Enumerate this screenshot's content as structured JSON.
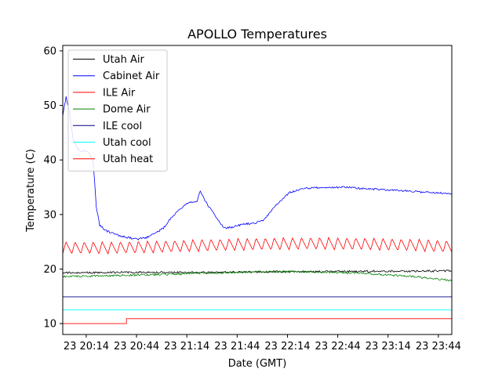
{
  "chart_data": {
    "type": "line",
    "title": "APOLLO Temperatures",
    "xlabel": "Date (GMT)",
    "ylabel": "Temperature (C)",
    "xlim": [
      "23 20:00",
      "23 23:52"
    ],
    "ylim": [
      8,
      61
    ],
    "grid": false,
    "legend_placement": "top-left",
    "x_ticks": [
      "23 20:14",
      "23 20:44",
      "23 21:14",
      "23 21:44",
      "23 22:14",
      "23 22:44",
      "23 23:14",
      "23 23:44"
    ],
    "y_ticks": [
      10,
      20,
      30,
      40,
      50,
      60
    ],
    "series": [
      {
        "name": "Utah Air",
        "color": "#000000",
        "x": [
          "23 20:00",
          "23 20:30",
          "23 21:00",
          "23 21:30",
          "23 22:00",
          "23 22:30",
          "23 23:00",
          "23 23:30",
          "23 23:52"
        ],
        "values": [
          19.3,
          19.4,
          19.4,
          19.4,
          19.5,
          19.5,
          19.6,
          19.6,
          19.7
        ]
      },
      {
        "name": "Cabinet Air",
        "color": "#0000ff",
        "x": [
          "23 20:00",
          "23 20:01",
          "23 20:02",
          "23 20:04",
          "23 20:06",
          "23 20:09",
          "23 20:11",
          "23 20:13",
          "23 20:15",
          "23 20:18",
          "23 20:19",
          "23 20:20",
          "23 20:22",
          "23 20:26",
          "23 20:30",
          "23 20:35",
          "23 20:40",
          "23 20:45",
          "23 20:50",
          "23 20:55",
          "23 21:00",
          "23 21:05",
          "23 21:10",
          "23 21:15",
          "23 21:20",
          "23 21:22",
          "23 21:25",
          "23 21:28",
          "23 21:31",
          "23 21:34",
          "23 21:37",
          "23 21:40",
          "23 21:45",
          "23 21:50",
          "23 21:55",
          "23 22:00",
          "23 22:05",
          "23 22:10",
          "23 22:15",
          "23 22:20",
          "23 22:25",
          "23 22:30",
          "23 22:40",
          "23 22:50",
          "23 23:00",
          "23 23:10",
          "23 23:20",
          "23 23:30",
          "23 23:40",
          "23 23:52"
        ],
        "values": [
          48,
          50,
          51.5,
          49,
          44,
          42,
          41.5,
          41.8,
          41.5,
          40,
          36,
          31.5,
          28,
          27,
          26.5,
          26,
          25.7,
          25.5,
          25.8,
          26.5,
          27.5,
          29.5,
          31,
          32.2,
          32.5,
          34.2,
          32.5,
          31,
          29.8,
          28.2,
          27.5,
          27.6,
          28,
          28.3,
          28.5,
          29,
          31,
          32.5,
          34,
          34.5,
          34.8,
          34.9,
          35,
          35,
          34.7,
          34.6,
          34.4,
          34.2,
          34,
          33.8
        ]
      },
      {
        "name": "ILE Air",
        "color": "#ff0000",
        "x": [
          "23 20:00",
          "23 20:30",
          "23 21:00",
          "23 21:30",
          "23 22:00",
          "23 22:30",
          "23 23:00",
          "23 23:30",
          "23 23:52"
        ],
        "values": [
          23.8,
          23.8,
          24,
          24.3,
          24.5,
          24.6,
          24.5,
          24.3,
          24
        ]
      },
      {
        "name": "Dome Air",
        "color": "#008000",
        "x": [
          "23 20:00",
          "23 20:30",
          "23 21:00",
          "23 21:30",
          "23 22:00",
          "23 22:30",
          "23 23:00",
          "23 23:30",
          "23 23:52"
        ],
        "values": [
          18.6,
          18.8,
          19,
          19.3,
          19.5,
          19.5,
          19.2,
          18.6,
          17.9
        ]
      },
      {
        "name": "ILE cool",
        "color": "#000080",
        "x": [
          "23 20:00",
          "23 23:52"
        ],
        "values": [
          14.9,
          14.9
        ]
      },
      {
        "name": "Utah cool",
        "color": "#00ffff",
        "x": [
          "23 20:00",
          "23 23:52"
        ],
        "values": [
          12.5,
          12.5
        ]
      },
      {
        "name": "Utah heat",
        "color": "#ff0000",
        "x": [
          "23 20:00",
          "23 20:38",
          "23 20:38",
          "23 23:52"
        ],
        "values": [
          10,
          10,
          10.9,
          10.9
        ]
      }
    ]
  }
}
